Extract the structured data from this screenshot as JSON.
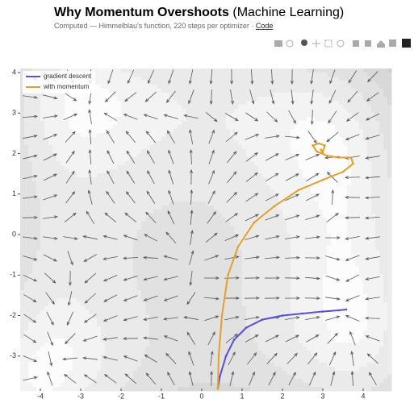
{
  "header": {
    "title": "Why Momentum Overshoots",
    "title_suffix": "(Machine Learning)",
    "subtitle": "Computed — Himmelblau's function, 220 steps per optimizer · ",
    "link": "Code"
  },
  "chart_data": {
    "type": "line",
    "series": [
      {
        "name": "gradient descent",
        "color": "#5a4fd8",
        "x": [
          0.4,
          0.45,
          0.6,
          0.8,
          1.1,
          1.5,
          2.0,
          2.5,
          3.0,
          3.4,
          3.58
        ],
        "values": [
          -3.8,
          -3.5,
          -3.0,
          -2.6,
          -2.3,
          -2.1,
          -2.0,
          -1.95,
          -1.9,
          -1.87,
          -1.85
        ]
      },
      {
        "name": "with momentum",
        "color": "#e3a02e",
        "x": [
          0.4,
          0.42,
          0.5,
          0.65,
          0.9,
          1.3,
          1.8,
          2.4,
          3.0,
          3.5,
          3.75,
          3.7,
          3.4,
          3.1,
          2.85,
          2.75,
          2.9,
          3.05,
          3.0,
          2.95,
          3.0
        ],
        "values": [
          -3.8,
          -3.0,
          -2.0,
          -1.0,
          -0.3,
          0.3,
          0.7,
          1.1,
          1.35,
          1.55,
          1.75,
          1.9,
          1.9,
          1.95,
          2.05,
          2.2,
          2.25,
          2.2,
          2.05,
          2.1,
          2.0
        ]
      }
    ],
    "xlim": [
      -4.5,
      4.7
    ],
    "ylim": [
      -3.8,
      4.1
    ],
    "xticks": [
      -4,
      -3,
      -2,
      -1,
      0,
      1,
      2,
      3,
      4
    ],
    "yticks": [
      -3,
      -2,
      -1,
      0,
      1,
      2,
      3,
      4
    ],
    "legend": "top-left"
  }
}
